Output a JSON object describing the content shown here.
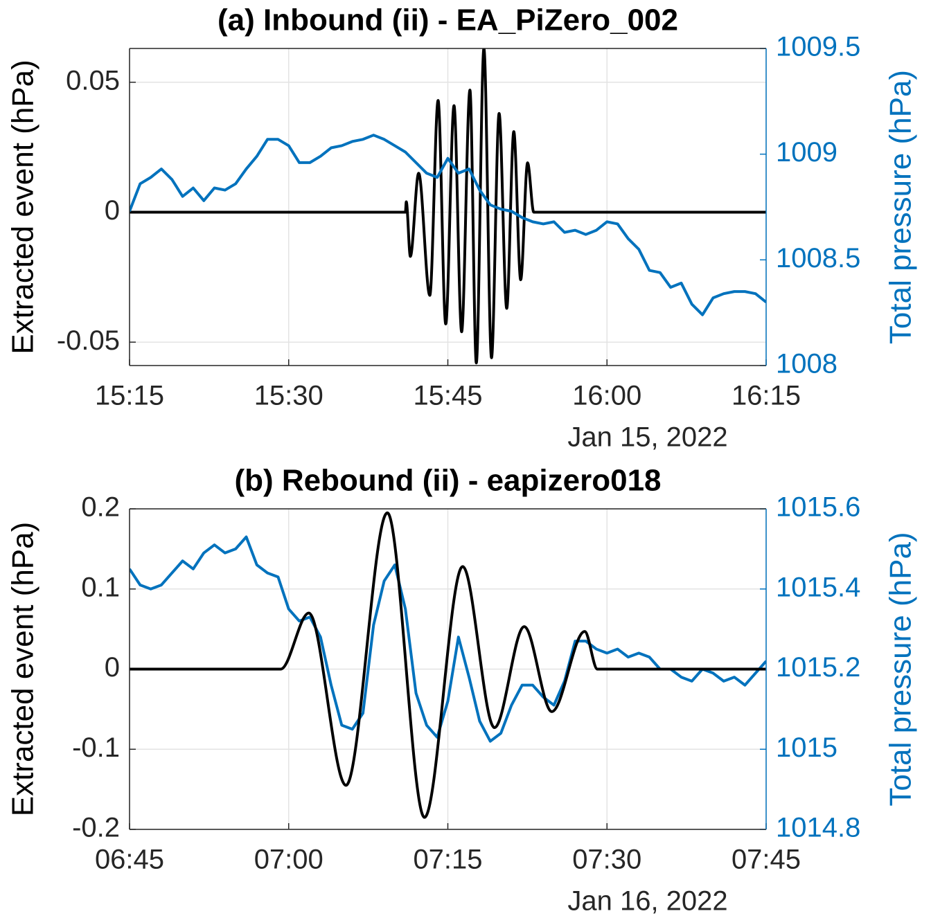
{
  "chart_data": [
    {
      "type": "line",
      "title": "(a) Inbound (ii) - EA_PiZero_002",
      "ylabel": "Extracted event (hPa)",
      "y2label": "Total pressure (hPa)",
      "xlabel": "Jan 15, 2022",
      "xlim": [
        "15:15",
        "16:15"
      ],
      "xticks": [
        "15:15",
        "15:30",
        "15:45",
        "16:00",
        "16:15"
      ],
      "ylim": [
        -0.059,
        0.063
      ],
      "yticks": [
        -0.05,
        0,
        0.05
      ],
      "y2lim": [
        1008,
        1009.5
      ],
      "y2ticks": [
        1008,
        1008.5,
        1009,
        1009.5
      ],
      "grid": true,
      "series": [
        {
          "color": "#000000",
          "x": [
            "15:15:00",
            "15:41:00",
            "15:41:05",
            "15:41:28",
            "15:42:15",
            "15:43:18",
            "15:44:05",
            "15:44:48",
            "15:45:35",
            "15:46:18",
            "15:47:05",
            "15:47:41",
            "15:48:24",
            "15:49:07",
            "15:49:50",
            "15:50:33",
            "15:51:13",
            "15:51:52",
            "15:52:31",
            "15:53:06",
            "16:15:00"
          ],
          "values": [
            0,
            0,
            0.004,
            -0.017,
            0.015,
            -0.032,
            0.043,
            -0.043,
            0.041,
            -0.046,
            0.047,
            -0.058,
            0.063,
            -0.056,
            0.038,
            -0.037,
            0.031,
            -0.026,
            0.019,
            0,
            0
          ]
        },
        {
          "color": "#0072bd",
          "axis": "y2",
          "x": [
            "15:15",
            "15:16",
            "15:17",
            "15:18",
            "15:19",
            "15:20",
            "15:21",
            "15:22",
            "15:23",
            "15:24",
            "15:25",
            "15:26",
            "15:27",
            "15:28",
            "15:29",
            "15:30",
            "15:31",
            "15:32",
            "15:33",
            "15:34",
            "15:35",
            "15:36",
            "15:37",
            "15:38",
            "15:39",
            "15:40",
            "15:41",
            "15:42",
            "15:43",
            "15:44",
            "15:45",
            "15:46",
            "15:47",
            "15:48",
            "15:49",
            "15:50",
            "15:51",
            "15:52",
            "15:53",
            "15:54",
            "15:55",
            "15:56",
            "15:57",
            "15:58",
            "15:59",
            "16:00",
            "16:01",
            "16:02",
            "16:03",
            "16:04",
            "16:05",
            "16:06",
            "16:07",
            "16:08",
            "16:09",
            "16:10",
            "16:11",
            "16:12",
            "16:13",
            "16:14",
            "16:15"
          ],
          "values": [
            1008.73,
            1008.86,
            1008.89,
            1008.93,
            1008.88,
            1008.8,
            1008.84,
            1008.78,
            1008.84,
            1008.83,
            1008.86,
            1008.93,
            1008.99,
            1009.07,
            1009.07,
            1009.04,
            1008.96,
            1008.96,
            1008.99,
            1009.03,
            1009.04,
            1009.06,
            1009.07,
            1009.09,
            1009.07,
            1009.04,
            1009.01,
            1008.96,
            1008.91,
            1008.89,
            1008.98,
            1008.91,
            1008.93,
            1008.83,
            1008.76,
            1008.74,
            1008.73,
            1008.7,
            1008.68,
            1008.67,
            1008.68,
            1008.63,
            1008.64,
            1008.62,
            1008.64,
            1008.68,
            1008.67,
            1008.6,
            1008.55,
            1008.45,
            1008.44,
            1008.37,
            1008.39,
            1008.29,
            1008.24,
            1008.32,
            1008.34,
            1008.35,
            1008.35,
            1008.34,
            1008.3
          ]
        }
      ]
    },
    {
      "type": "line",
      "title": "(b) Rebound (ii) - eapizero018",
      "ylabel": "Extracted event (hPa)",
      "y2label": "Total pressure (hPa)",
      "xlabel": "Jan 16, 2022",
      "xlim": [
        "06:45",
        "07:45"
      ],
      "xticks": [
        "06:45",
        "07:00",
        "07:15",
        "07:30",
        "07:45"
      ],
      "ylim": [
        -0.2,
        0.2
      ],
      "yticks": [
        -0.2,
        -0.1,
        0,
        0.1,
        0.2
      ],
      "y2lim": [
        1014.8,
        1015.6
      ],
      "y2ticks": [
        1014.8,
        1015,
        1015.2,
        1015.4,
        1015.6
      ],
      "grid": true,
      "series": [
        {
          "color": "#000000",
          "x": [
            "06:45:00",
            "06:59:15",
            "07:01:54",
            "07:05:24",
            "07:09:18",
            "07:12:48",
            "07:16:24",
            "07:19:24",
            "07:22:12",
            "07:24:48",
            "07:27:54",
            "07:29:06",
            "07:45:00"
          ],
          "values": [
            0,
            0,
            0.07,
            -0.145,
            0.195,
            -0.185,
            0.128,
            -0.073,
            0.053,
            -0.053,
            0.047,
            0,
            0
          ]
        },
        {
          "color": "#0072bd",
          "axis": "y2",
          "x": [
            "06:45",
            "06:46",
            "06:47",
            "06:48",
            "06:49",
            "06:50",
            "06:51",
            "06:52",
            "06:53",
            "06:54",
            "06:55",
            "06:56",
            "06:57",
            "06:58",
            "06:59",
            "07:00",
            "07:01",
            "07:02",
            "07:03",
            "07:04",
            "07:05",
            "07:06",
            "07:07",
            "07:08",
            "07:09",
            "07:10",
            "07:11",
            "07:12",
            "07:13",
            "07:14",
            "07:15",
            "07:16",
            "07:17",
            "07:18",
            "07:19",
            "07:20",
            "07:21",
            "07:22",
            "07:23",
            "07:24",
            "07:25",
            "07:26",
            "07:27",
            "07:28",
            "07:29",
            "07:30",
            "07:31",
            "07:32",
            "07:33",
            "07:34",
            "07:35",
            "07:36",
            "07:37",
            "07:38",
            "07:39",
            "07:40",
            "07:41",
            "07:42",
            "07:43",
            "07:44",
            "07:45"
          ],
          "values": [
            1015.45,
            1015.41,
            1015.4,
            1015.41,
            1015.44,
            1015.47,
            1015.45,
            1015.49,
            1015.51,
            1015.49,
            1015.5,
            1015.53,
            1015.46,
            1015.44,
            1015.43,
            1015.35,
            1015.32,
            1015.33,
            1015.28,
            1015.16,
            1015.06,
            1015.05,
            1015.09,
            1015.31,
            1015.42,
            1015.46,
            1015.35,
            1015.14,
            1015.06,
            1015.03,
            1015.12,
            1015.28,
            1015.18,
            1015.07,
            1015.02,
            1015.04,
            1015.11,
            1015.16,
            1015.16,
            1015.13,
            1015.11,
            1015.17,
            1015.27,
            1015.27,
            1015.25,
            1015.24,
            1015.25,
            1015.23,
            1015.24,
            1015.23,
            1015.2,
            1015.2,
            1015.18,
            1015.17,
            1015.2,
            1015.19,
            1015.17,
            1015.18,
            1015.16,
            1015.19,
            1015.22
          ]
        }
      ]
    }
  ]
}
